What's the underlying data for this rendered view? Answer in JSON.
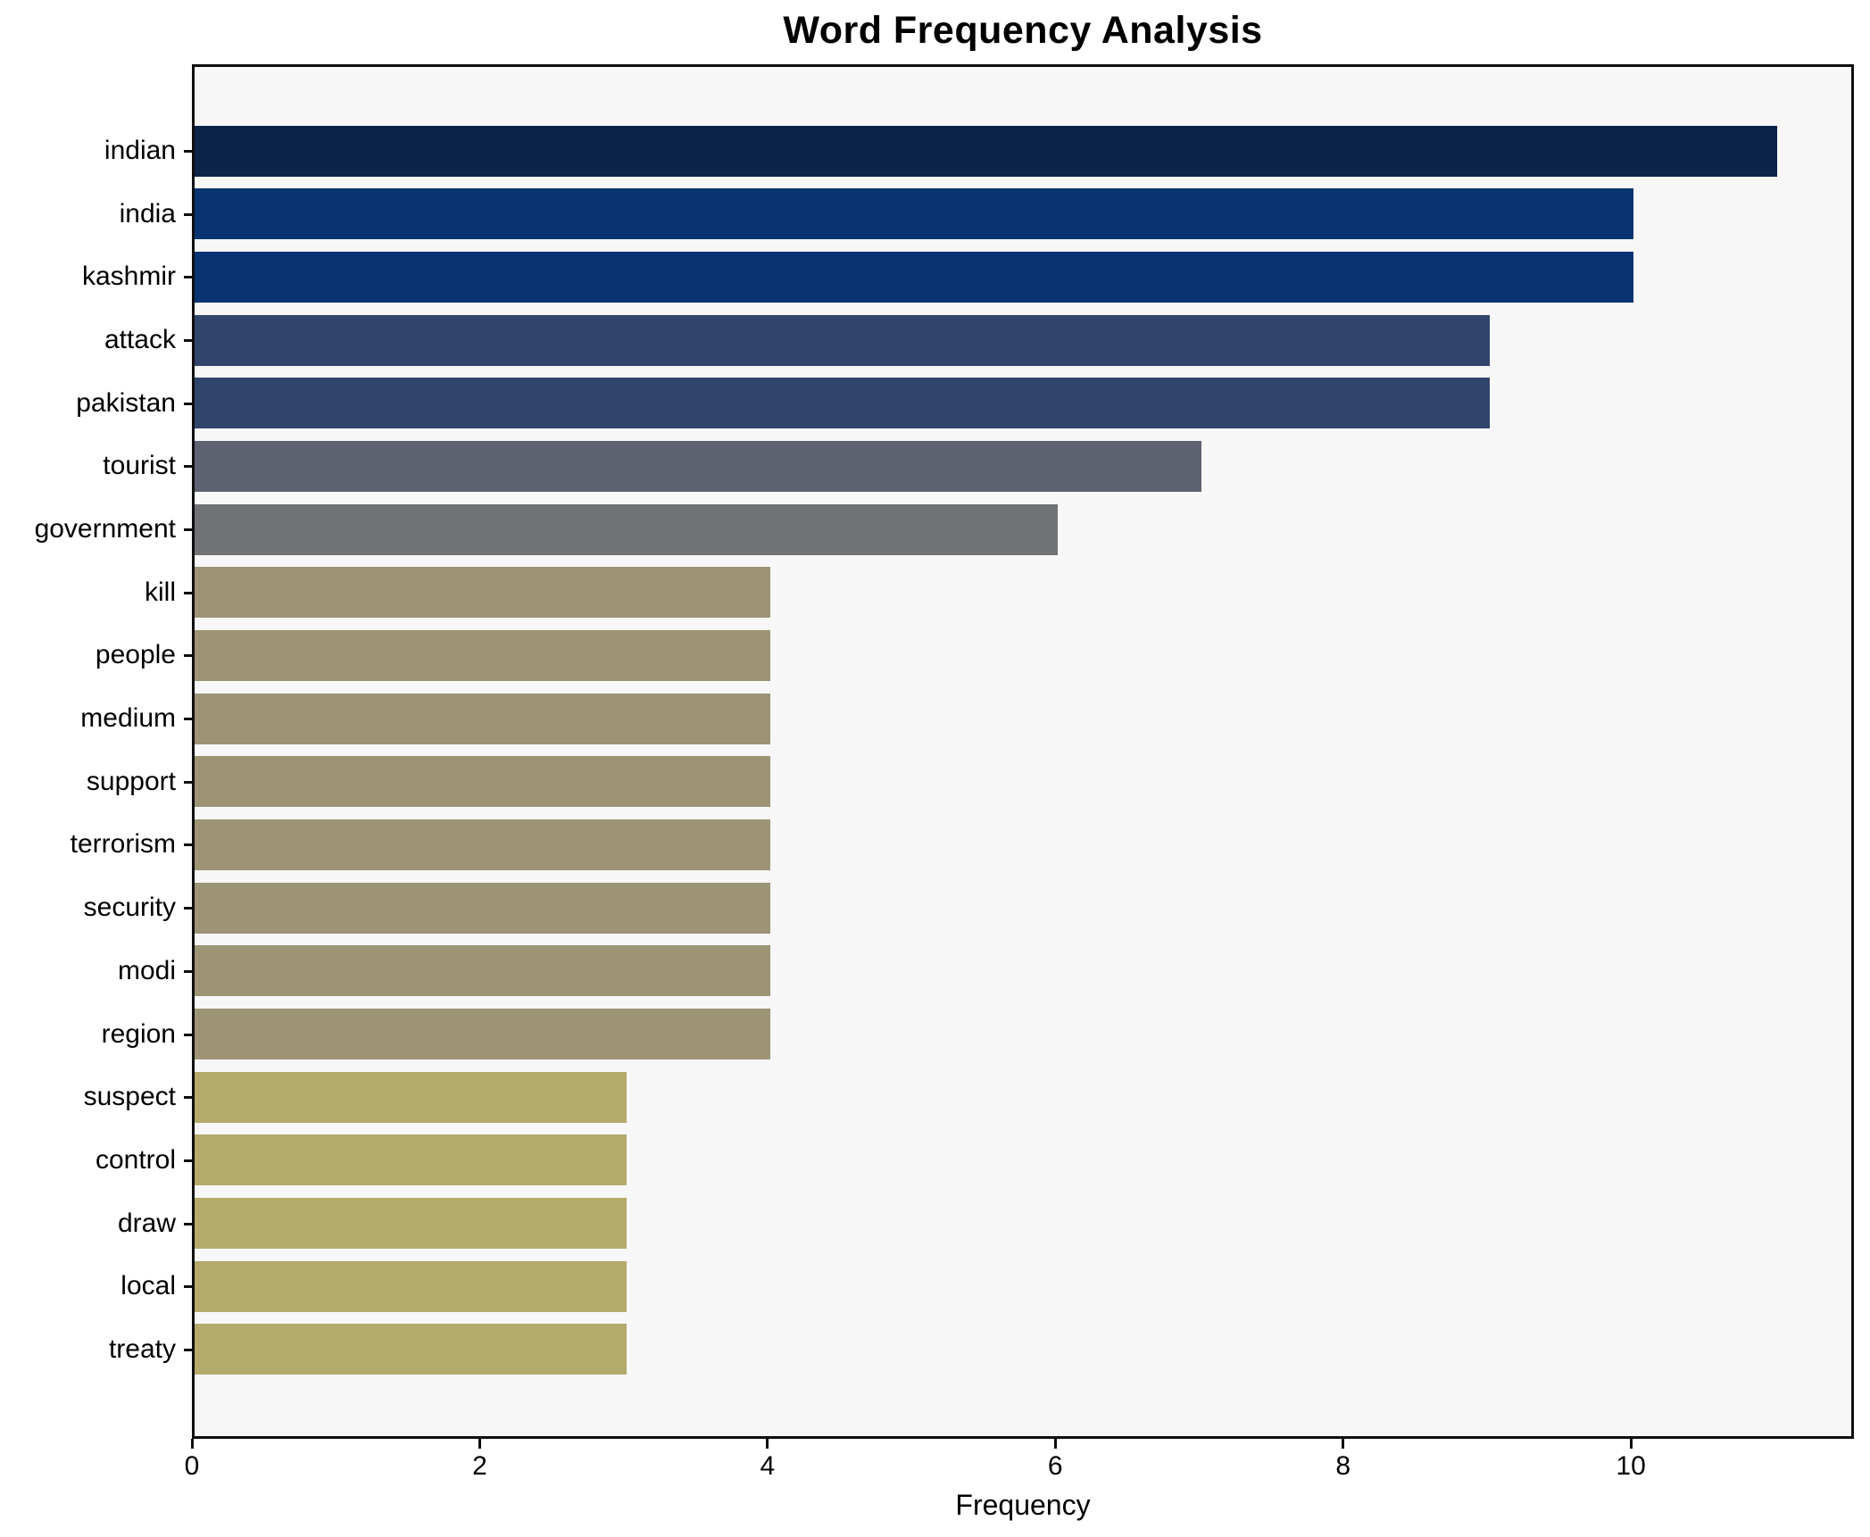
{
  "chart_data": {
    "type": "bar",
    "orientation": "horizontal",
    "title": "Word Frequency Analysis",
    "xlabel": "Frequency",
    "ylabel": "",
    "categories": [
      "indian",
      "india",
      "kashmir",
      "attack",
      "pakistan",
      "tourist",
      "government",
      "kill",
      "people",
      "medium",
      "support",
      "terrorism",
      "security",
      "modi",
      "region",
      "suspect",
      "control",
      "draw",
      "local",
      "treaty"
    ],
    "values": [
      11,
      10,
      10,
      9,
      9,
      7,
      6,
      4,
      4,
      4,
      4,
      4,
      4,
      4,
      4,
      3,
      3,
      3,
      3,
      3
    ],
    "bar_colors": [
      "#0b2349",
      "#083471",
      "#083471",
      "#31446c",
      "#31446c",
      "#5e6271",
      "#717276",
      "#9c9474",
      "#9c9474",
      "#9c9474",
      "#9c9474",
      "#9c9474",
      "#9c9474",
      "#9c9474",
      "#9c9474",
      "#b4aa6c",
      "#b4aa6c",
      "#b4aa6c",
      "#b4aa6c",
      "#b4aa6c"
    ],
    "xticks": [
      0,
      2,
      4,
      6,
      8,
      10
    ],
    "xtick_labels": [
      "0",
      "2",
      "4",
      "6",
      "8",
      "10"
    ],
    "xlim": [
      0,
      11.55
    ],
    "grid": false,
    "legend": "none",
    "plot_background": "#f7f7f7",
    "page_background": "#ffffff",
    "spine_color": "#0f0f0f",
    "text_color": "#000000"
  }
}
